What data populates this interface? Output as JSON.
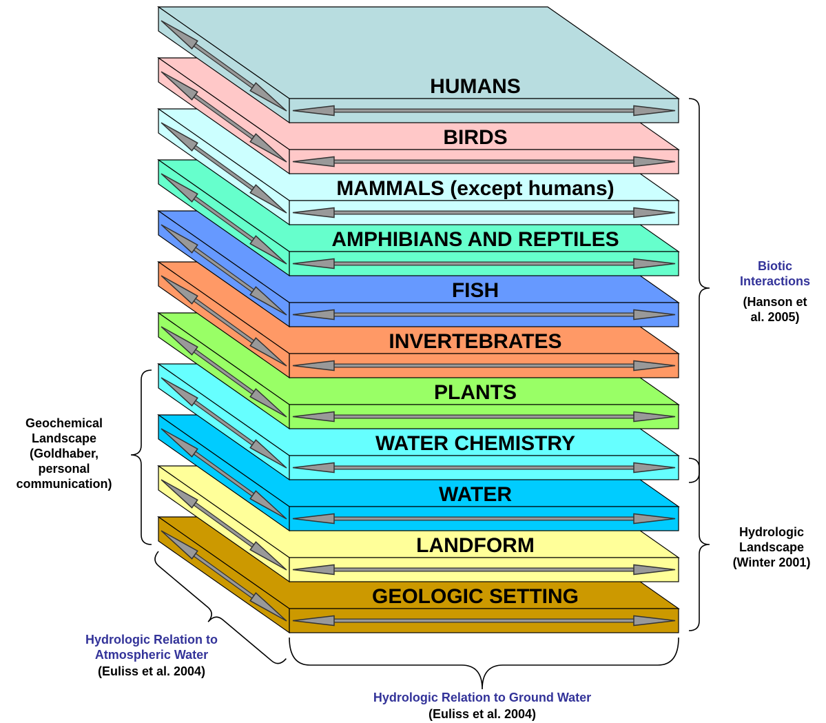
{
  "layers": [
    {
      "label": "HUMANS",
      "color": "#b8dde0"
    },
    {
      "label": "BIRDS",
      "color": "#ffc8c8"
    },
    {
      "label": "MAMMALS (except humans)",
      "color": "#ccffff"
    },
    {
      "label": "AMPHIBIANS AND REPTILES",
      "color": "#66ffcc"
    },
    {
      "label": "FISH",
      "color": "#6699ff"
    },
    {
      "label": "INVERTEBRATES",
      "color": "#ff9966"
    },
    {
      "label": "PLANTS",
      "color": "#99ff66"
    },
    {
      "label": "WATER CHEMISTRY",
      "color": "#66ffff"
    },
    {
      "label": "WATER",
      "color": "#00ccff"
    },
    {
      "label": "LANDFORM",
      "color": "#ffff99"
    },
    {
      "label": "GEOLOGIC SETTING",
      "color": "#cc9900"
    }
  ],
  "annotations": {
    "biotic": {
      "title": [
        "Biotic",
        "Interactions"
      ],
      "source": [
        "(Hanson et",
        "al. 2005)"
      ]
    },
    "hydrologic_landscape": {
      "lines": [
        "Hydrologic",
        "Landscape",
        "(Winter 2001)"
      ]
    },
    "geochemical": {
      "lines": [
        "Geochemical",
        "Landscape",
        "(Goldhaber,",
        "personal",
        "communication)"
      ]
    },
    "atmospheric": {
      "title": [
        "Hydrologic Relation to",
        "Atmospheric Water"
      ],
      "source": [
        "(Euliss et al. 2004)"
      ]
    },
    "ground_water": {
      "title": [
        "Hydrologic Relation to Ground Water"
      ],
      "source": [
        "(Euliss et al. 2004)"
      ]
    }
  }
}
